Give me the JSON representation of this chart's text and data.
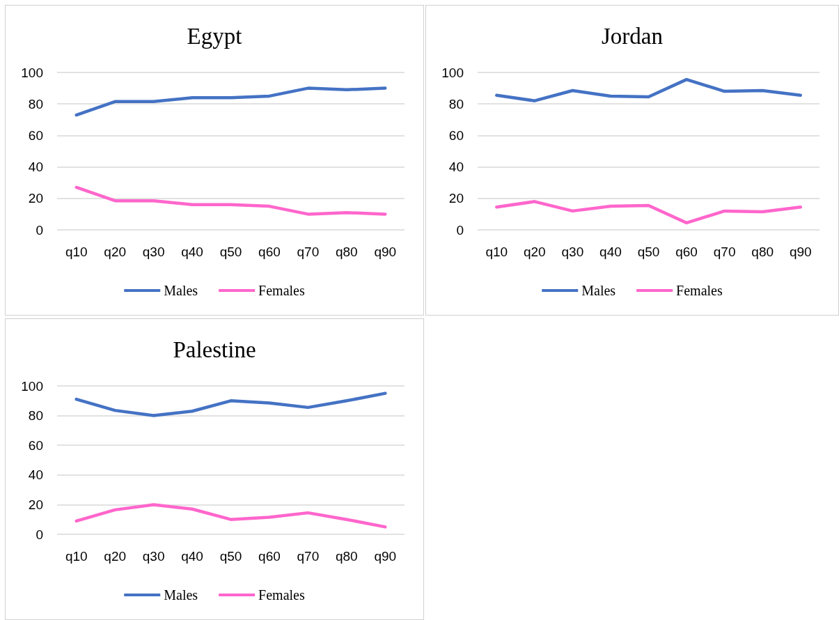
{
  "chart_data": [
    {
      "type": "line",
      "title": "Egypt",
      "categories": [
        "q10",
        "q20",
        "q30",
        "q40",
        "q50",
        "q60",
        "q70",
        "q80",
        "q90"
      ],
      "ylim": [
        0,
        100
      ],
      "yticks": [
        0,
        20,
        40,
        60,
        80,
        100
      ],
      "grid": "y",
      "legend": "bottom",
      "marker": "none",
      "line_style": "solid",
      "series": [
        {
          "name": "Males",
          "color": "#4472c4",
          "values": [
            73,
            81.5,
            81.5,
            84,
            84,
            85,
            90,
            89,
            90
          ]
        },
        {
          "name": "Females",
          "color": "#ff66cc",
          "values": [
            27,
            18.5,
            18.5,
            16,
            16,
            15,
            10,
            11,
            10
          ]
        }
      ]
    },
    {
      "type": "line",
      "title": "Jordan",
      "categories": [
        "q10",
        "q20",
        "q30",
        "q40",
        "q50",
        "q60",
        "q70",
        "q80",
        "q90"
      ],
      "ylim": [
        0,
        100
      ],
      "yticks": [
        0,
        20,
        40,
        60,
        80,
        100
      ],
      "grid": "y",
      "legend": "bottom",
      "marker": "none",
      "line_style": "solid",
      "series": [
        {
          "name": "Males",
          "color": "#4472c4",
          "values": [
            85.5,
            82,
            88.5,
            85,
            84.5,
            95.5,
            88,
            88.5,
            85.5
          ]
        },
        {
          "name": "Females",
          "color": "#ff66cc",
          "values": [
            14.5,
            18,
            12,
            15,
            15.5,
            4.5,
            12,
            11.5,
            14.5
          ]
        }
      ]
    },
    {
      "type": "line",
      "title": "Palestine",
      "categories": [
        "q10",
        "q20",
        "q30",
        "q40",
        "q50",
        "q60",
        "q70",
        "q80",
        "q90"
      ],
      "ylim": [
        0,
        100
      ],
      "yticks": [
        0,
        20,
        40,
        60,
        80,
        100
      ],
      "grid": "y",
      "legend": "bottom",
      "marker": "none",
      "line_style": "solid",
      "series": [
        {
          "name": "Males",
          "color": "#4472c4",
          "values": [
            91,
            83.5,
            80,
            83,
            90,
            88.5,
            85.5,
            90,
            95
          ]
        },
        {
          "name": "Females",
          "color": "#ff66cc",
          "values": [
            9,
            16.5,
            20,
            17,
            10,
            11.5,
            14.5,
            10,
            5
          ]
        }
      ]
    }
  ]
}
